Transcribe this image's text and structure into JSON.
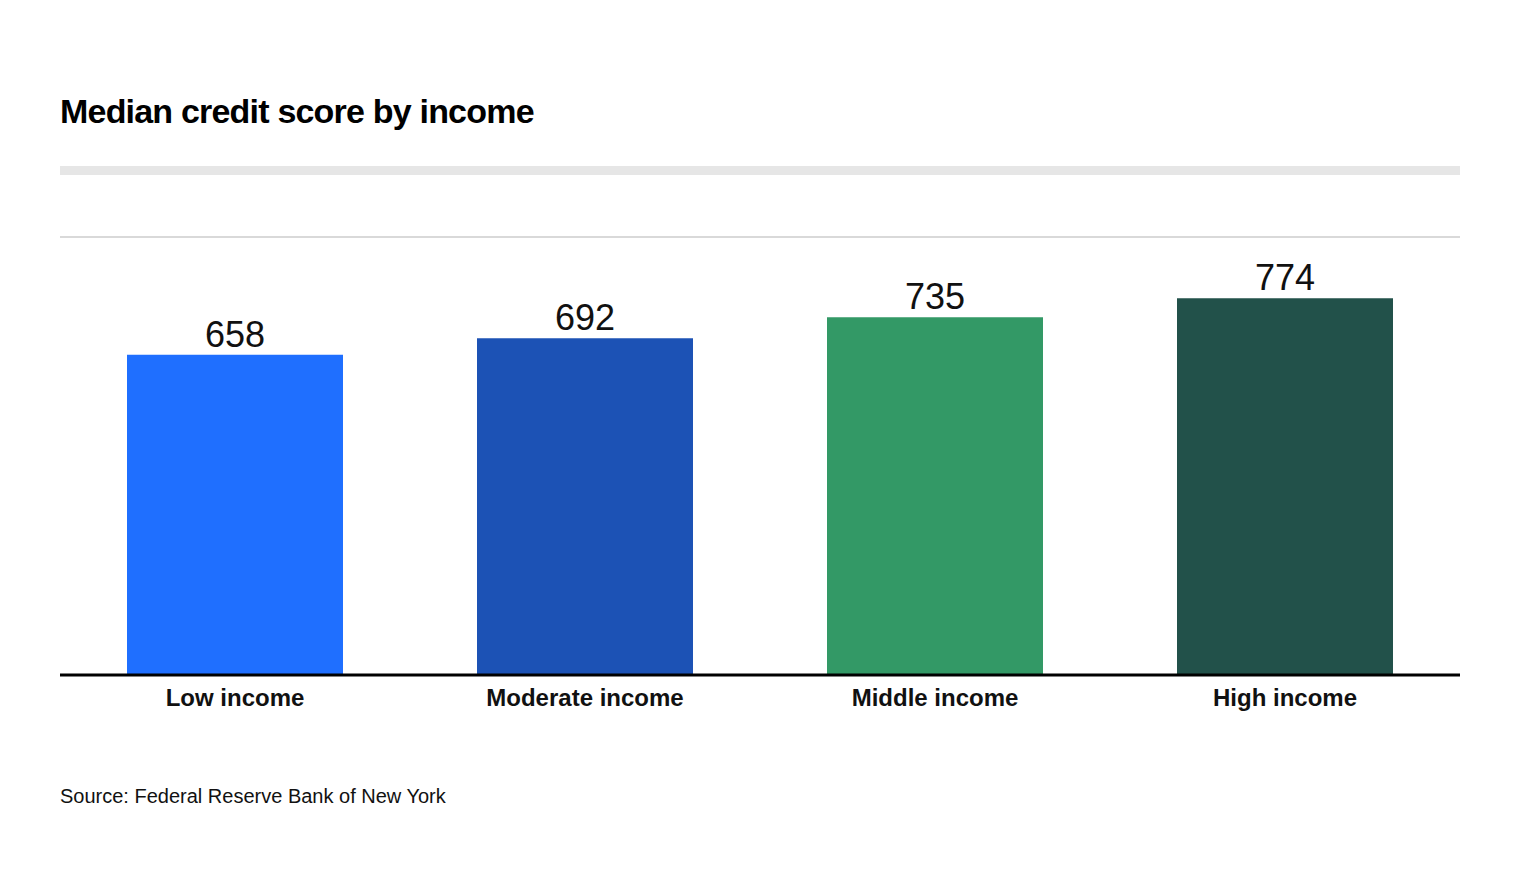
{
  "chart_data": {
    "type": "bar",
    "title": "Median credit score by income",
    "source": "Source: Federal Reserve Bank of New York",
    "categories": [
      "Low income",
      "Moderate income",
      "Middle income",
      "High income"
    ],
    "values": [
      658,
      692,
      735,
      774
    ],
    "colors": [
      "#1f6fff",
      "#1c52b5",
      "#339966",
      "#22514a"
    ],
    "ylim": [
      0,
      900
    ],
    "yticks": [
      0,
      100,
      200,
      300,
      400,
      500,
      600,
      700,
      800,
      900
    ],
    "grid": true,
    "data_labels": true,
    "tick_labels": "x"
  }
}
